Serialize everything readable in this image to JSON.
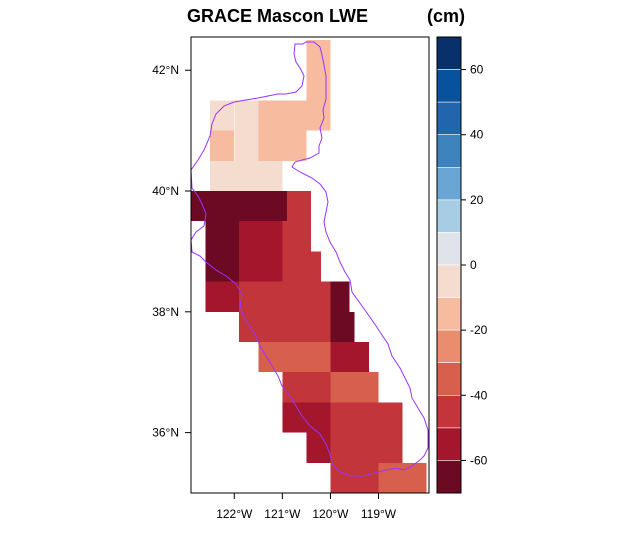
{
  "title": "GRACE Mascon LWE",
  "units": "(cm)",
  "map": {
    "lon_range": [
      -122.9,
      -117.95
    ],
    "lat_range": [
      35.0,
      42.55
    ],
    "grid_step_deg": 0.5,
    "cell_colors_by_row": [
      {
        "lat": [
          42.0,
          42.5
        ],
        "cells": [
          {
            "lon": [
              -120.5,
              -120.0
            ],
            "value": -15
          }
        ]
      },
      {
        "lat": [
          41.5,
          42.0
        ],
        "cells": [
          {
            "lon": [
              -120.5,
              -120.0
            ],
            "value": -15
          }
        ]
      },
      {
        "lat": [
          41.0,
          41.5
        ],
        "cells": [
          {
            "lon": [
              -122.5,
              -122.0
            ],
            "value": -5
          },
          {
            "lon": [
              -122.0,
              -121.5
            ],
            "value": -5
          },
          {
            "lon": [
              -121.5,
              -120.0
            ],
            "value": -15
          }
        ]
      },
      {
        "lat": [
          40.5,
          41.0
        ],
        "cells": [
          {
            "lon": [
              -122.5,
              -122.0
            ],
            "value": -15
          },
          {
            "lon": [
              -122.0,
              -121.5
            ],
            "value": -5
          },
          {
            "lon": [
              -121.5,
              -120.5
            ],
            "value": -15
          }
        ]
      },
      {
        "lat": [
          40.0,
          40.5
        ],
        "cells": [
          {
            "lon": [
              -122.5,
              -121.0
            ],
            "value": -5
          }
        ]
      },
      {
        "lat": [
          39.5,
          40.0
        ],
        "cells": [
          {
            "lon": [
              -122.9,
              -120.9
            ],
            "value": -65
          },
          {
            "lon": [
              -120.9,
              -120.4
            ],
            "value": -45
          }
        ]
      },
      {
        "lat": [
          39.0,
          39.5
        ],
        "cells": [
          {
            "lon": [
              -122.6,
              -121.9
            ],
            "value": -65
          },
          {
            "lon": [
              -121.9,
              -121.0
            ],
            "value": -55
          },
          {
            "lon": [
              -121.0,
              -120.4
            ],
            "value": -45
          }
        ]
      },
      {
        "lat": [
          38.5,
          39.0
        ],
        "cells": [
          {
            "lon": [
              -122.6,
              -121.9
            ],
            "value": -65
          },
          {
            "lon": [
              -121.9,
              -121.0
            ],
            "value": -55
          },
          {
            "lon": [
              -121.0,
              -120.2
            ],
            "value": -45
          }
        ]
      },
      {
        "lat": [
          38.0,
          38.5
        ],
        "cells": [
          {
            "lon": [
              -122.6,
              -121.9
            ],
            "value": -55
          },
          {
            "lon": [
              -121.9,
              -120.0
            ],
            "value": -45
          },
          {
            "lon": [
              -120.0,
              -119.6
            ],
            "value": -65
          }
        ]
      },
      {
        "lat": [
          37.5,
          38.0
        ],
        "cells": [
          {
            "lon": [
              -121.9,
              -120.0
            ],
            "value": -45
          },
          {
            "lon": [
              -120.0,
              -119.5
            ],
            "value": -65
          }
        ]
      },
      {
        "lat": [
          37.0,
          37.5
        ],
        "cells": [
          {
            "lon": [
              -121.5,
              -120.0
            ],
            "value": -35
          },
          {
            "lon": [
              -120.0,
              -119.2
            ],
            "value": -55
          }
        ]
      },
      {
        "lat": [
          36.5,
          37.0
        ],
        "cells": [
          {
            "lon": [
              -121.0,
              -120.0
            ],
            "value": -45
          },
          {
            "lon": [
              -120.0,
              -119.0
            ],
            "value": -35
          }
        ]
      },
      {
        "lat": [
          36.0,
          36.5
        ],
        "cells": [
          {
            "lon": [
              -121.0,
              -120.0
            ],
            "value": -55
          },
          {
            "lon": [
              -120.0,
              -118.5
            ],
            "value": -45
          }
        ]
      },
      {
        "lat": [
          35.5,
          36.0
        ],
        "cells": [
          {
            "lon": [
              -120.5,
              -120.0
            ],
            "value": -55
          },
          {
            "lon": [
              -120.0,
              -118.5
            ],
            "value": -45
          }
        ]
      },
      {
        "lat": [
          35.0,
          35.5
        ],
        "cells": [
          {
            "lon": [
              -120.0,
              -119.0
            ],
            "value": -45
          },
          {
            "lon": [
              -119.0,
              -118.0
            ],
            "value": -35
          }
        ]
      }
    ]
  },
  "y_ticks": [
    {
      "lat": 42,
      "label": "42°N"
    },
    {
      "lat": 40,
      "label": "40°N"
    },
    {
      "lat": 38,
      "label": "38°N"
    },
    {
      "lat": 36,
      "label": "36°N"
    }
  ],
  "x_ticks": [
    {
      "lon": -122,
      "label": "122°W"
    },
    {
      "lon": -121,
      "label": "121°W"
    },
    {
      "lon": -120,
      "label": "120°W"
    },
    {
      "lon": -119,
      "label": "119°W"
    }
  ],
  "colorbar": {
    "min": -70,
    "max": 70,
    "ticks": [
      60,
      40,
      20,
      0,
      -20,
      -40,
      -60
    ],
    "tick_labels": [
      "60",
      "40",
      "20",
      "0",
      "-20",
      "-40",
      "-60"
    ],
    "bins": [
      {
        "from": 60,
        "to": 70,
        "color": "#08306b"
      },
      {
        "from": 50,
        "to": 60,
        "color": "#08519c"
      },
      {
        "from": 40,
        "to": 50,
        "color": "#2166ac"
      },
      {
        "from": 30,
        "to": 40,
        "color": "#3d84bf"
      },
      {
        "from": 20,
        "to": 30,
        "color": "#6aa6d3"
      },
      {
        "from": 10,
        "to": 20,
        "color": "#a6cde3"
      },
      {
        "from": 0,
        "to": 10,
        "color": "#dfe4ea"
      },
      {
        "from": -10,
        "to": 0,
        "color": "#f4dccf"
      },
      {
        "from": -20,
        "to": -10,
        "color": "#f7bca0"
      },
      {
        "from": -30,
        "to": -20,
        "color": "#ea8c6e"
      },
      {
        "from": -40,
        "to": -30,
        "color": "#d6604d"
      },
      {
        "from": -50,
        "to": -40,
        "color": "#c2353a"
      },
      {
        "from": -60,
        "to": -50,
        "color": "#a3162b"
      },
      {
        "from": -70,
        "to": -60,
        "color": "#6b0a22"
      }
    ]
  },
  "colors": {
    "outline": "#9933ff",
    "frame": "#000000"
  }
}
